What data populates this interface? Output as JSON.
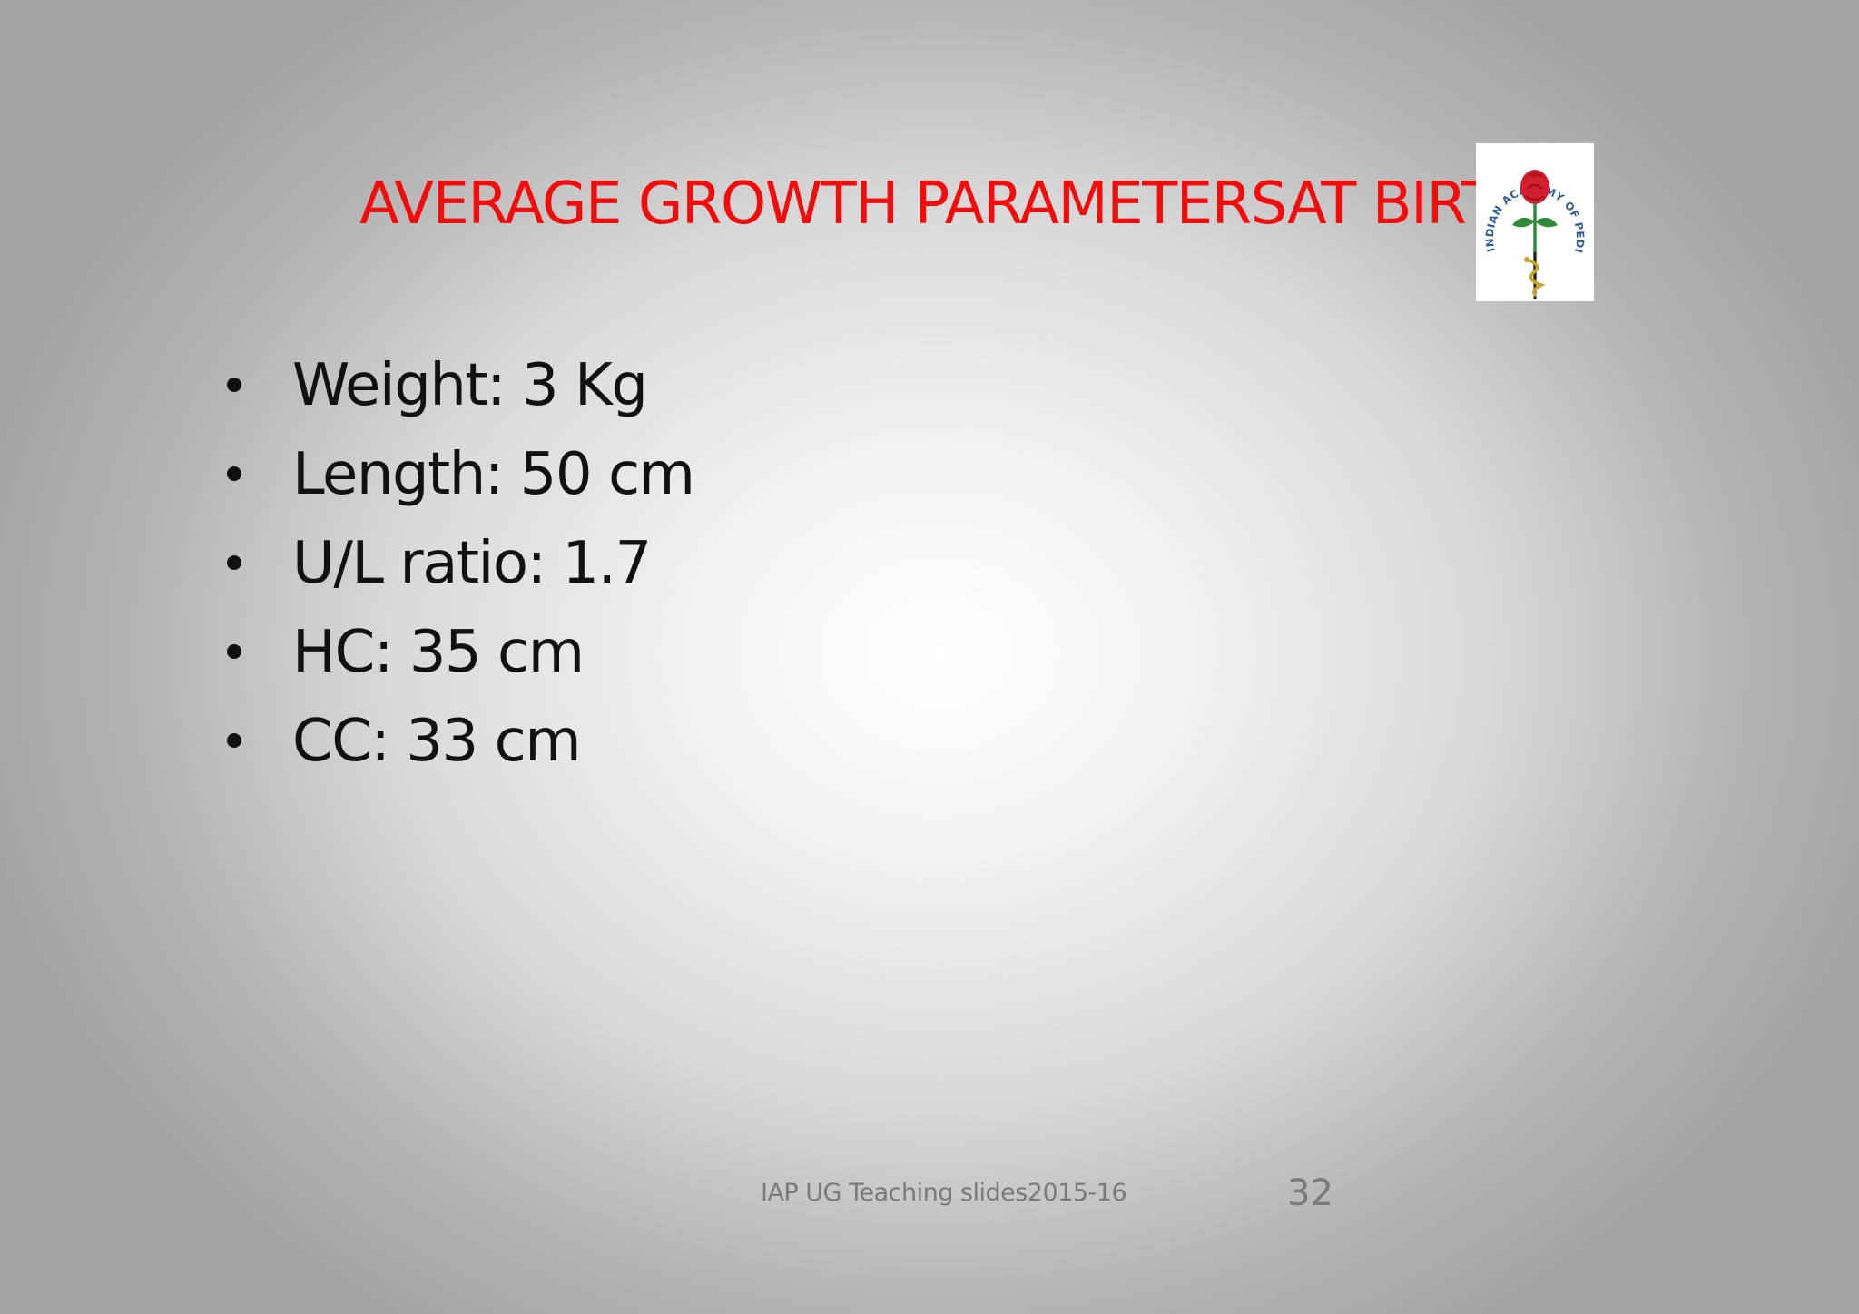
{
  "slide": {
    "title": "AVERAGE GROWTH PARAMETERSAT BIRTH",
    "title_color": "#f20d0d",
    "bullets": [
      {
        "text": "Weight: 3 Kg"
      },
      {
        "text": "Length: 50 cm"
      },
      {
        "text": "U/L ratio: 1.7"
      },
      {
        "text": "HC: 35 cm"
      },
      {
        "text": "CC: 33 cm"
      }
    ],
    "footer": "IAP UG Teaching slides2015-16",
    "page_number": "32"
  },
  "logo": {
    "icon": "indian-academy-of-pediatrics-logo",
    "text": "INDIAN ACADEMY OF PEDIATRICS",
    "text_color": "#2a5d9a",
    "rose_color": "#d21e2d",
    "stem_color": "#2e8b3a"
  }
}
